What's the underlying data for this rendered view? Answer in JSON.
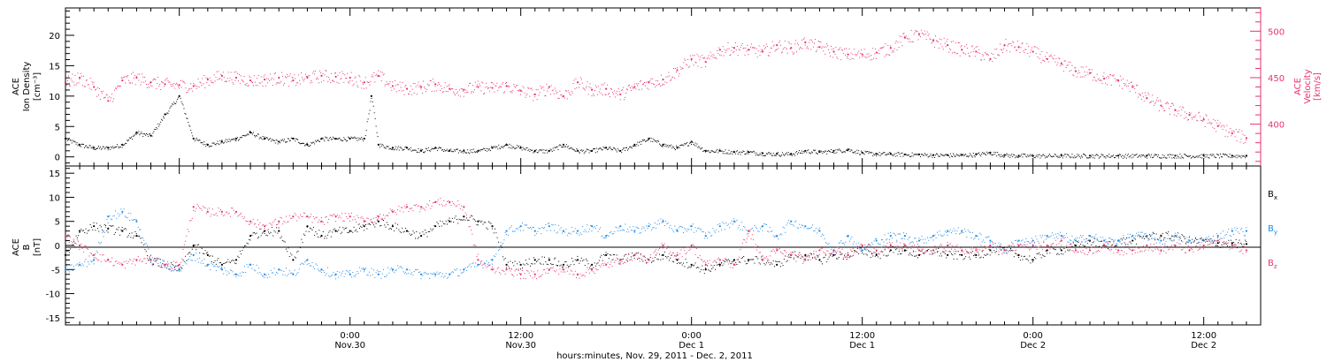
{
  "colors": {
    "black": "#000000",
    "pink": "#e8336d",
    "blue": "#1f8be8"
  },
  "xaxis": {
    "range_hours": [
      -20,
      64
    ],
    "label": "hours:minutes, Nov. 29, 2011 - Dec. 2, 2011",
    "ticks": [
      {
        "hours": 0,
        "time": "0:00",
        "date": "Nov.30"
      },
      {
        "hours": 12,
        "time": "12:00",
        "date": "Nov.30"
      },
      {
        "hours": 24,
        "time": "0:00",
        "date": "Dec 1"
      },
      {
        "hours": 36,
        "time": "12:00",
        "date": "Dec 1"
      },
      {
        "hours": 48,
        "time": "0:00",
        "date": "Dec 2"
      },
      {
        "hours": 60,
        "time": "12:00",
        "date": "Dec 2"
      }
    ]
  },
  "chart_data": [
    {
      "type": "scatter",
      "panel": "top",
      "ylabel_left": [
        "ACE",
        "Ion Density",
        "[cm⁻³]"
      ],
      "ylabel_right": [
        "ACE",
        "Velocity",
        "[km/s]"
      ],
      "ylim_left": [
        -1.5,
        24.5
      ],
      "yticks_left": [
        0,
        5,
        10,
        15,
        20
      ],
      "ylim_right": [
        355,
        525
      ],
      "yticks_right": [
        400,
        450,
        500
      ],
      "series": [
        {
          "name": "Ion Density",
          "axis": "left",
          "color": "black",
          "x": [
            -20,
            -19,
            -18,
            -17,
            -16,
            -15,
            -14,
            -13,
            -12,
            -11,
            -10,
            -9,
            -8,
            -7,
            -6,
            -5,
            -4,
            -3,
            -2,
            -1,
            0,
            1,
            1.5,
            2,
            3,
            4,
            5,
            6,
            7,
            8,
            9,
            10,
            11,
            12,
            13,
            14,
            15,
            16,
            17,
            18,
            19,
            20,
            21,
            22,
            23,
            24,
            25,
            26,
            27,
            28,
            29,
            30,
            31,
            32,
            33,
            34,
            35,
            36,
            37,
            38,
            39,
            40,
            41,
            42,
            43,
            44,
            45,
            46,
            47,
            48,
            50,
            52,
            54,
            56,
            58,
            60,
            62,
            63
          ],
          "y": [
            3,
            2,
            1.5,
            1.5,
            2,
            4,
            3.5,
            7,
            10,
            3,
            2,
            2.5,
            3,
            4,
            3,
            2.5,
            3,
            2,
            3,
            3,
            3,
            3,
            10,
            2,
            1.5,
            1.5,
            1,
            1.5,
            1,
            1,
            1,
            1.5,
            2,
            1.5,
            1,
            1,
            2,
            1,
            1,
            1.5,
            1,
            2,
            3,
            2,
            1.5,
            2.5,
            1,
            1,
            0.8,
            0.8,
            0.6,
            0.5,
            0.5,
            1,
            0.8,
            1,
            1.2,
            0.7,
            0.5,
            0.5,
            0.4,
            0.4,
            0.3,
            0.3,
            0.3,
            0.4,
            0.7,
            0.3,
            0.2,
            0.2,
            0.2,
            0.2,
            0.2,
            0.2,
            0.2,
            0.2,
            0.2,
            0.2
          ]
        },
        {
          "name": "Velocity",
          "axis": "right",
          "color": "pink",
          "x": [
            -20,
            -19,
            -18,
            -17,
            -16,
            -15,
            -14,
            -13,
            -12,
            -11,
            -10,
            -9,
            -8,
            -7,
            -6,
            -5,
            -4,
            -3,
            -2,
            -1,
            0,
            1,
            2,
            3,
            4,
            5,
            6,
            7,
            8,
            9,
            10,
            11,
            12,
            13,
            14,
            15,
            16,
            17,
            18,
            19,
            20,
            21,
            22,
            23,
            24,
            25,
            26,
            27,
            28,
            29,
            30,
            31,
            32,
            33,
            34,
            35,
            36,
            37,
            38,
            39,
            40,
            41,
            42,
            43,
            44,
            45,
            46,
            47,
            48,
            49,
            50,
            51,
            52,
            53,
            54,
            55,
            56,
            57,
            58,
            59,
            60,
            61,
            62,
            63
          ],
          "y": [
            445,
            450,
            440,
            425,
            447,
            450,
            445,
            443,
            442,
            441,
            448,
            452,
            450,
            447,
            448,
            450,
            447,
            450,
            452,
            451,
            450,
            445,
            452,
            441,
            438,
            440,
            443,
            438,
            437,
            440,
            439,
            441,
            436,
            432,
            440,
            430,
            445,
            437,
            438,
            432,
            440,
            445,
            448,
            458,
            470,
            467,
            480,
            482,
            480,
            478,
            485,
            482,
            488,
            483,
            478,
            475,
            475,
            477,
            482,
            493,
            497,
            490,
            485,
            480,
            478,
            470,
            485,
            483,
            478,
            470,
            465,
            457,
            455,
            449,
            447,
            440,
            428,
            420,
            415,
            410,
            405,
            398,
            390,
            385
          ]
        }
      ]
    },
    {
      "type": "scatter",
      "panel": "bottom",
      "ylabel_left": [
        "ACE",
        "B",
        "[nT]"
      ],
      "ylim": [
        -16.5,
        16.5
      ],
      "yticks": [
        -15,
        -10,
        -5,
        0,
        5,
        10,
        15
      ],
      "legend_position": "right",
      "series": [
        {
          "name": "Bx",
          "color": "black",
          "x": [
            -20,
            -19,
            -18,
            -17,
            -16,
            -15,
            -14,
            -13,
            -12,
            -11,
            -10,
            -9,
            -8,
            -7,
            -6,
            -5,
            -4,
            -3,
            -2,
            -1,
            0,
            1,
            2,
            3,
            4,
            5,
            6,
            7,
            8,
            9,
            10,
            11,
            12,
            13,
            14,
            15,
            16,
            17,
            18,
            19,
            20,
            21,
            22,
            23,
            24,
            25,
            26,
            27,
            28,
            29,
            30,
            31,
            32,
            33,
            34,
            35,
            36,
            37,
            38,
            39,
            40,
            41,
            42,
            43,
            44,
            45,
            46,
            47,
            48,
            49,
            50,
            51,
            52,
            53,
            54,
            55,
            56,
            57,
            58,
            59,
            60,
            61,
            62,
            63
          ],
          "y": [
            -2,
            3,
            4,
            3.5,
            3,
            2,
            -3,
            -4,
            -5,
            0,
            -2,
            -4,
            -3,
            2,
            3,
            3,
            -3,
            4,
            2,
            3,
            3,
            4,
            5,
            4,
            3,
            2,
            4,
            5,
            6,
            5,
            4,
            -4,
            -4,
            -3,
            -3,
            -4,
            -3,
            -4,
            -2,
            -3,
            -2,
            -3,
            -2,
            -3,
            -4,
            -5,
            -4,
            -3,
            -3,
            -3,
            -4,
            -2,
            -2,
            -3,
            -2,
            -2,
            -1,
            -2,
            -1,
            -1,
            -2,
            -1,
            -2,
            -2,
            -2,
            -1,
            -1,
            -2,
            -3,
            -1,
            -1,
            0,
            1,
            0,
            1,
            1,
            2,
            2,
            2,
            1,
            1,
            0.5,
            0.5,
            0.3
          ]
        },
        {
          "name": "By",
          "color": "blue",
          "x": [
            -20,
            -19,
            -18,
            -17,
            -16,
            -15,
            -14,
            -13,
            -12,
            -11,
            -10,
            -9,
            -8,
            -7,
            -6,
            -5,
            -4,
            -3,
            -2,
            -1,
            0,
            1,
            2,
            3,
            4,
            5,
            6,
            7,
            8,
            9,
            10,
            11,
            12,
            13,
            14,
            15,
            16,
            17,
            18,
            19,
            20,
            21,
            22,
            23,
            24,
            25,
            26,
            27,
            28,
            29,
            30,
            31,
            32,
            33,
            34,
            35,
            36,
            37,
            38,
            39,
            40,
            41,
            42,
            43,
            44,
            45,
            46,
            47,
            48,
            49,
            50,
            51,
            52,
            53,
            54,
            55,
            56,
            57,
            58,
            59,
            60,
            61,
            62,
            63
          ],
          "y": [
            -5,
            -4,
            -3,
            6,
            7,
            5,
            -3,
            -4,
            -5,
            -2,
            -4,
            -5,
            -6,
            -4,
            -6,
            -5,
            -6,
            -3,
            -5,
            -6,
            -6,
            -5,
            -6,
            -5,
            -5,
            -6,
            -6,
            -6,
            -5,
            -4,
            -3,
            3,
            4,
            3,
            4,
            3,
            3,
            4,
            2,
            4,
            3,
            4,
            5,
            3,
            4,
            2,
            4,
            5,
            3,
            4,
            2,
            5,
            4,
            3,
            -1,
            2,
            -1,
            1,
            2,
            2,
            1,
            2,
            3,
            3,
            2,
            1,
            -1,
            1,
            1,
            2,
            2,
            1,
            2,
            1,
            1,
            2,
            2,
            1,
            2,
            1,
            1,
            2,
            3,
            3
          ]
        },
        {
          "name": "Bz",
          "color": "pink",
          "x": [
            -20,
            -19,
            -18,
            -17,
            -16,
            -15,
            -14,
            -13,
            -12,
            -11,
            -10,
            -9,
            -8,
            -7,
            -6,
            -5,
            -4,
            -3,
            -2,
            -1,
            0,
            1,
            2,
            3,
            4,
            5,
            6,
            7,
            8,
            9,
            10,
            11,
            12,
            13,
            14,
            15,
            16,
            17,
            18,
            19,
            20,
            21,
            22,
            23,
            24,
            25,
            26,
            27,
            28,
            29,
            30,
            31,
            32,
            33,
            34,
            35,
            36,
            37,
            38,
            39,
            40,
            41,
            42,
            43,
            44,
            45,
            46,
            47,
            48,
            49,
            50,
            51,
            52,
            53,
            54,
            55,
            56,
            57,
            58,
            59,
            60,
            61,
            62,
            63
          ],
          "y": [
            2,
            0,
            -2,
            -3,
            -4,
            -3,
            -3,
            -4,
            -4,
            8,
            7,
            7,
            7,
            5,
            4,
            5,
            6,
            6,
            5,
            6,
            6,
            5,
            6,
            7,
            8,
            8,
            9,
            9,
            8,
            -3,
            -5,
            -5,
            -6,
            -6,
            -5,
            -5,
            -6,
            -5,
            -4,
            -3,
            -2,
            -3,
            0,
            -2,
            0,
            -4,
            -3,
            -4,
            3,
            -3,
            -1,
            -2,
            -3,
            -1,
            -1,
            -2,
            0,
            -1,
            0,
            0,
            -1,
            -1,
            0,
            -1,
            -1,
            0,
            -1,
            0,
            0,
            0,
            1,
            -1,
            -1,
            0,
            -1,
            -1,
            0,
            -1,
            0,
            -1,
            0,
            1,
            0,
            -1
          ]
        }
      ]
    }
  ],
  "legend_labels": {
    "bx_main": "B",
    "bx_sub": "x",
    "by_main": "B",
    "by_sub": "y",
    "bz_main": "B",
    "bz_sub": "z"
  }
}
